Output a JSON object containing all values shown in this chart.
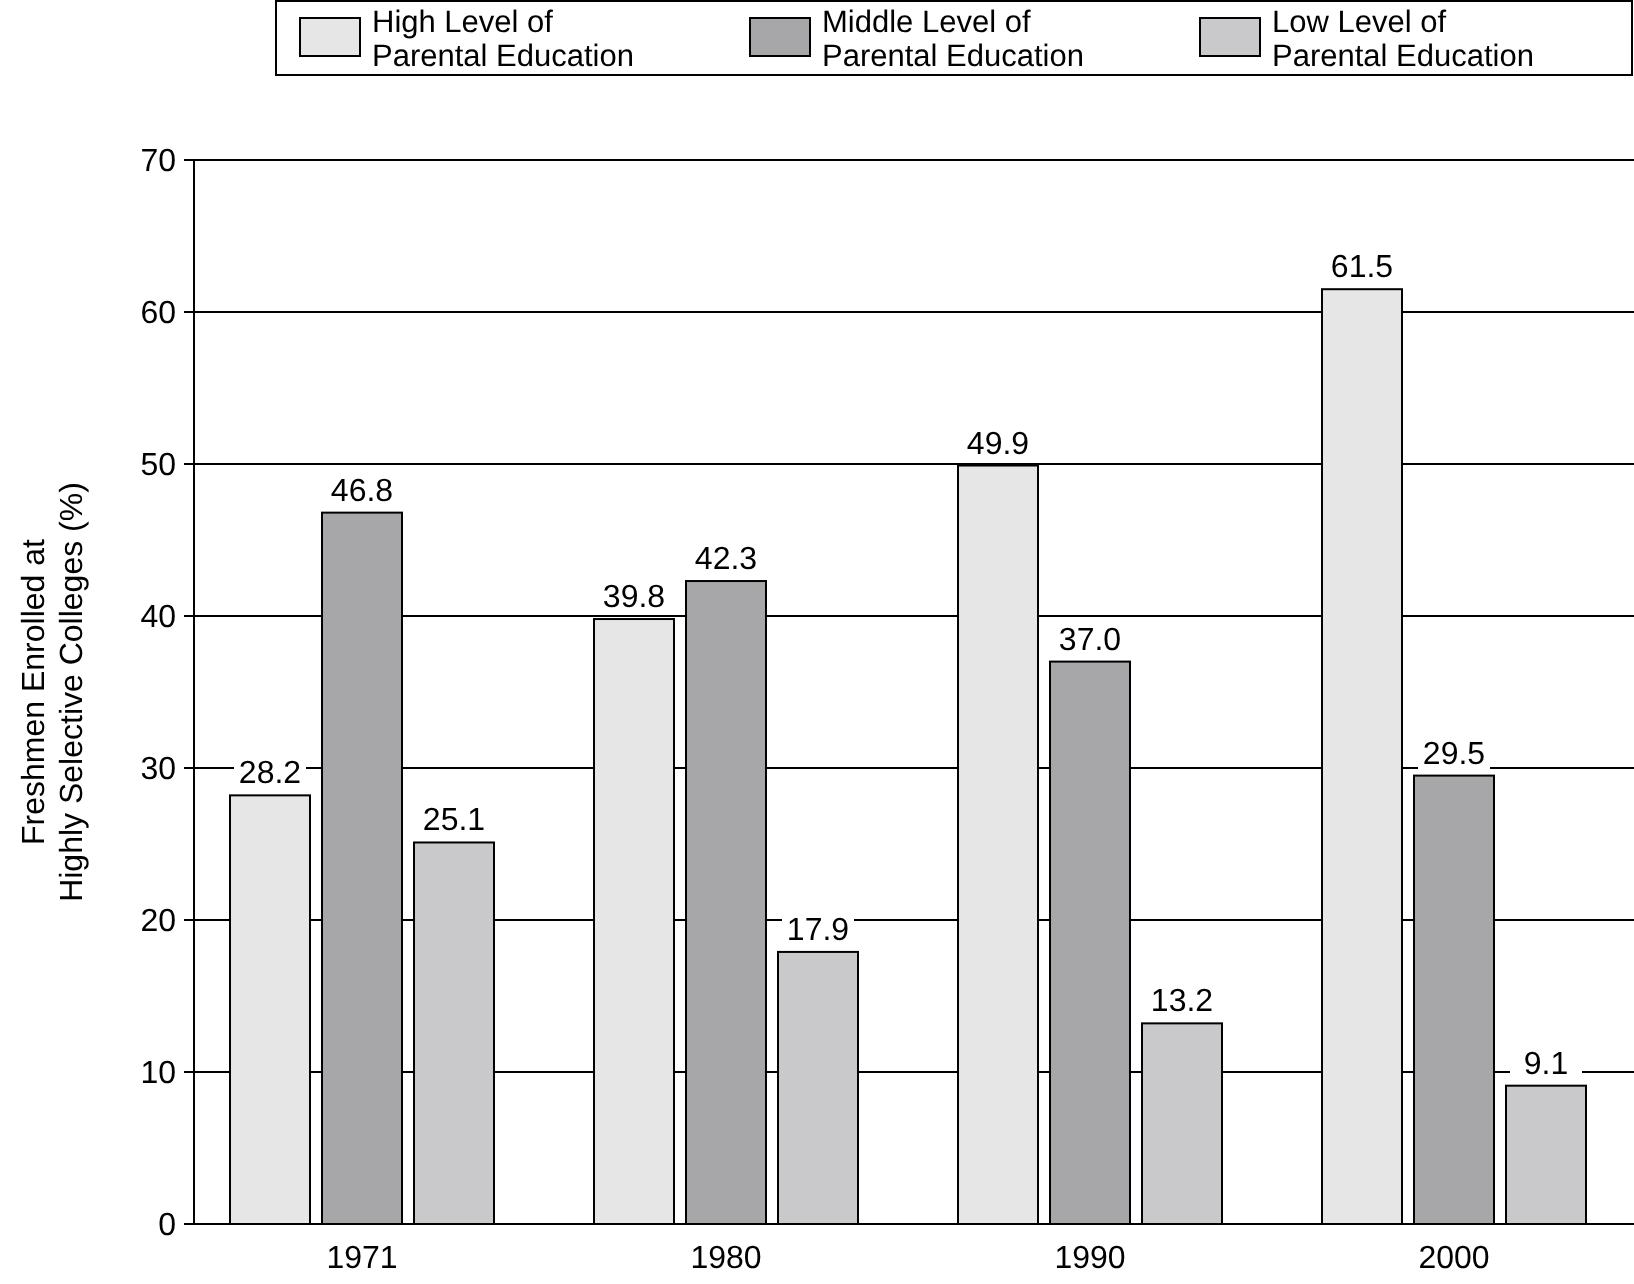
{
  "chart_data": {
    "type": "bar",
    "ylabel": "Freshmen Enrolled at\nHighly Selective Colleges (%)",
    "categories": [
      "1971",
      "1980",
      "1990",
      "2000"
    ],
    "series": [
      {
        "name": "High Level of\nParental Education",
        "color": "#e6e6e7",
        "values": [
          28.2,
          39.8,
          49.9,
          61.5
        ]
      },
      {
        "name": "Middle Level of\nParental Education",
        "color": "#a7a7a9",
        "values": [
          46.8,
          42.3,
          37.0,
          29.5
        ]
      },
      {
        "name": "Low Level of\nParental Education",
        "color": "#c9c9cb",
        "values": [
          25.1,
          17.9,
          13.2,
          9.1
        ]
      }
    ],
    "value_labels": [
      [
        "28.2",
        "39.8",
        "49.9",
        "61.5"
      ],
      [
        "46.8",
        "42.3",
        "37.0",
        "29.5"
      ],
      [
        "25.1",
        "17.9",
        "13.2",
        "9.1"
      ]
    ],
    "ylim": [
      0,
      70
    ],
    "yticks": [
      0,
      10,
      20,
      30,
      40,
      50,
      60,
      70
    ],
    "grid": "y",
    "legend": "top"
  }
}
